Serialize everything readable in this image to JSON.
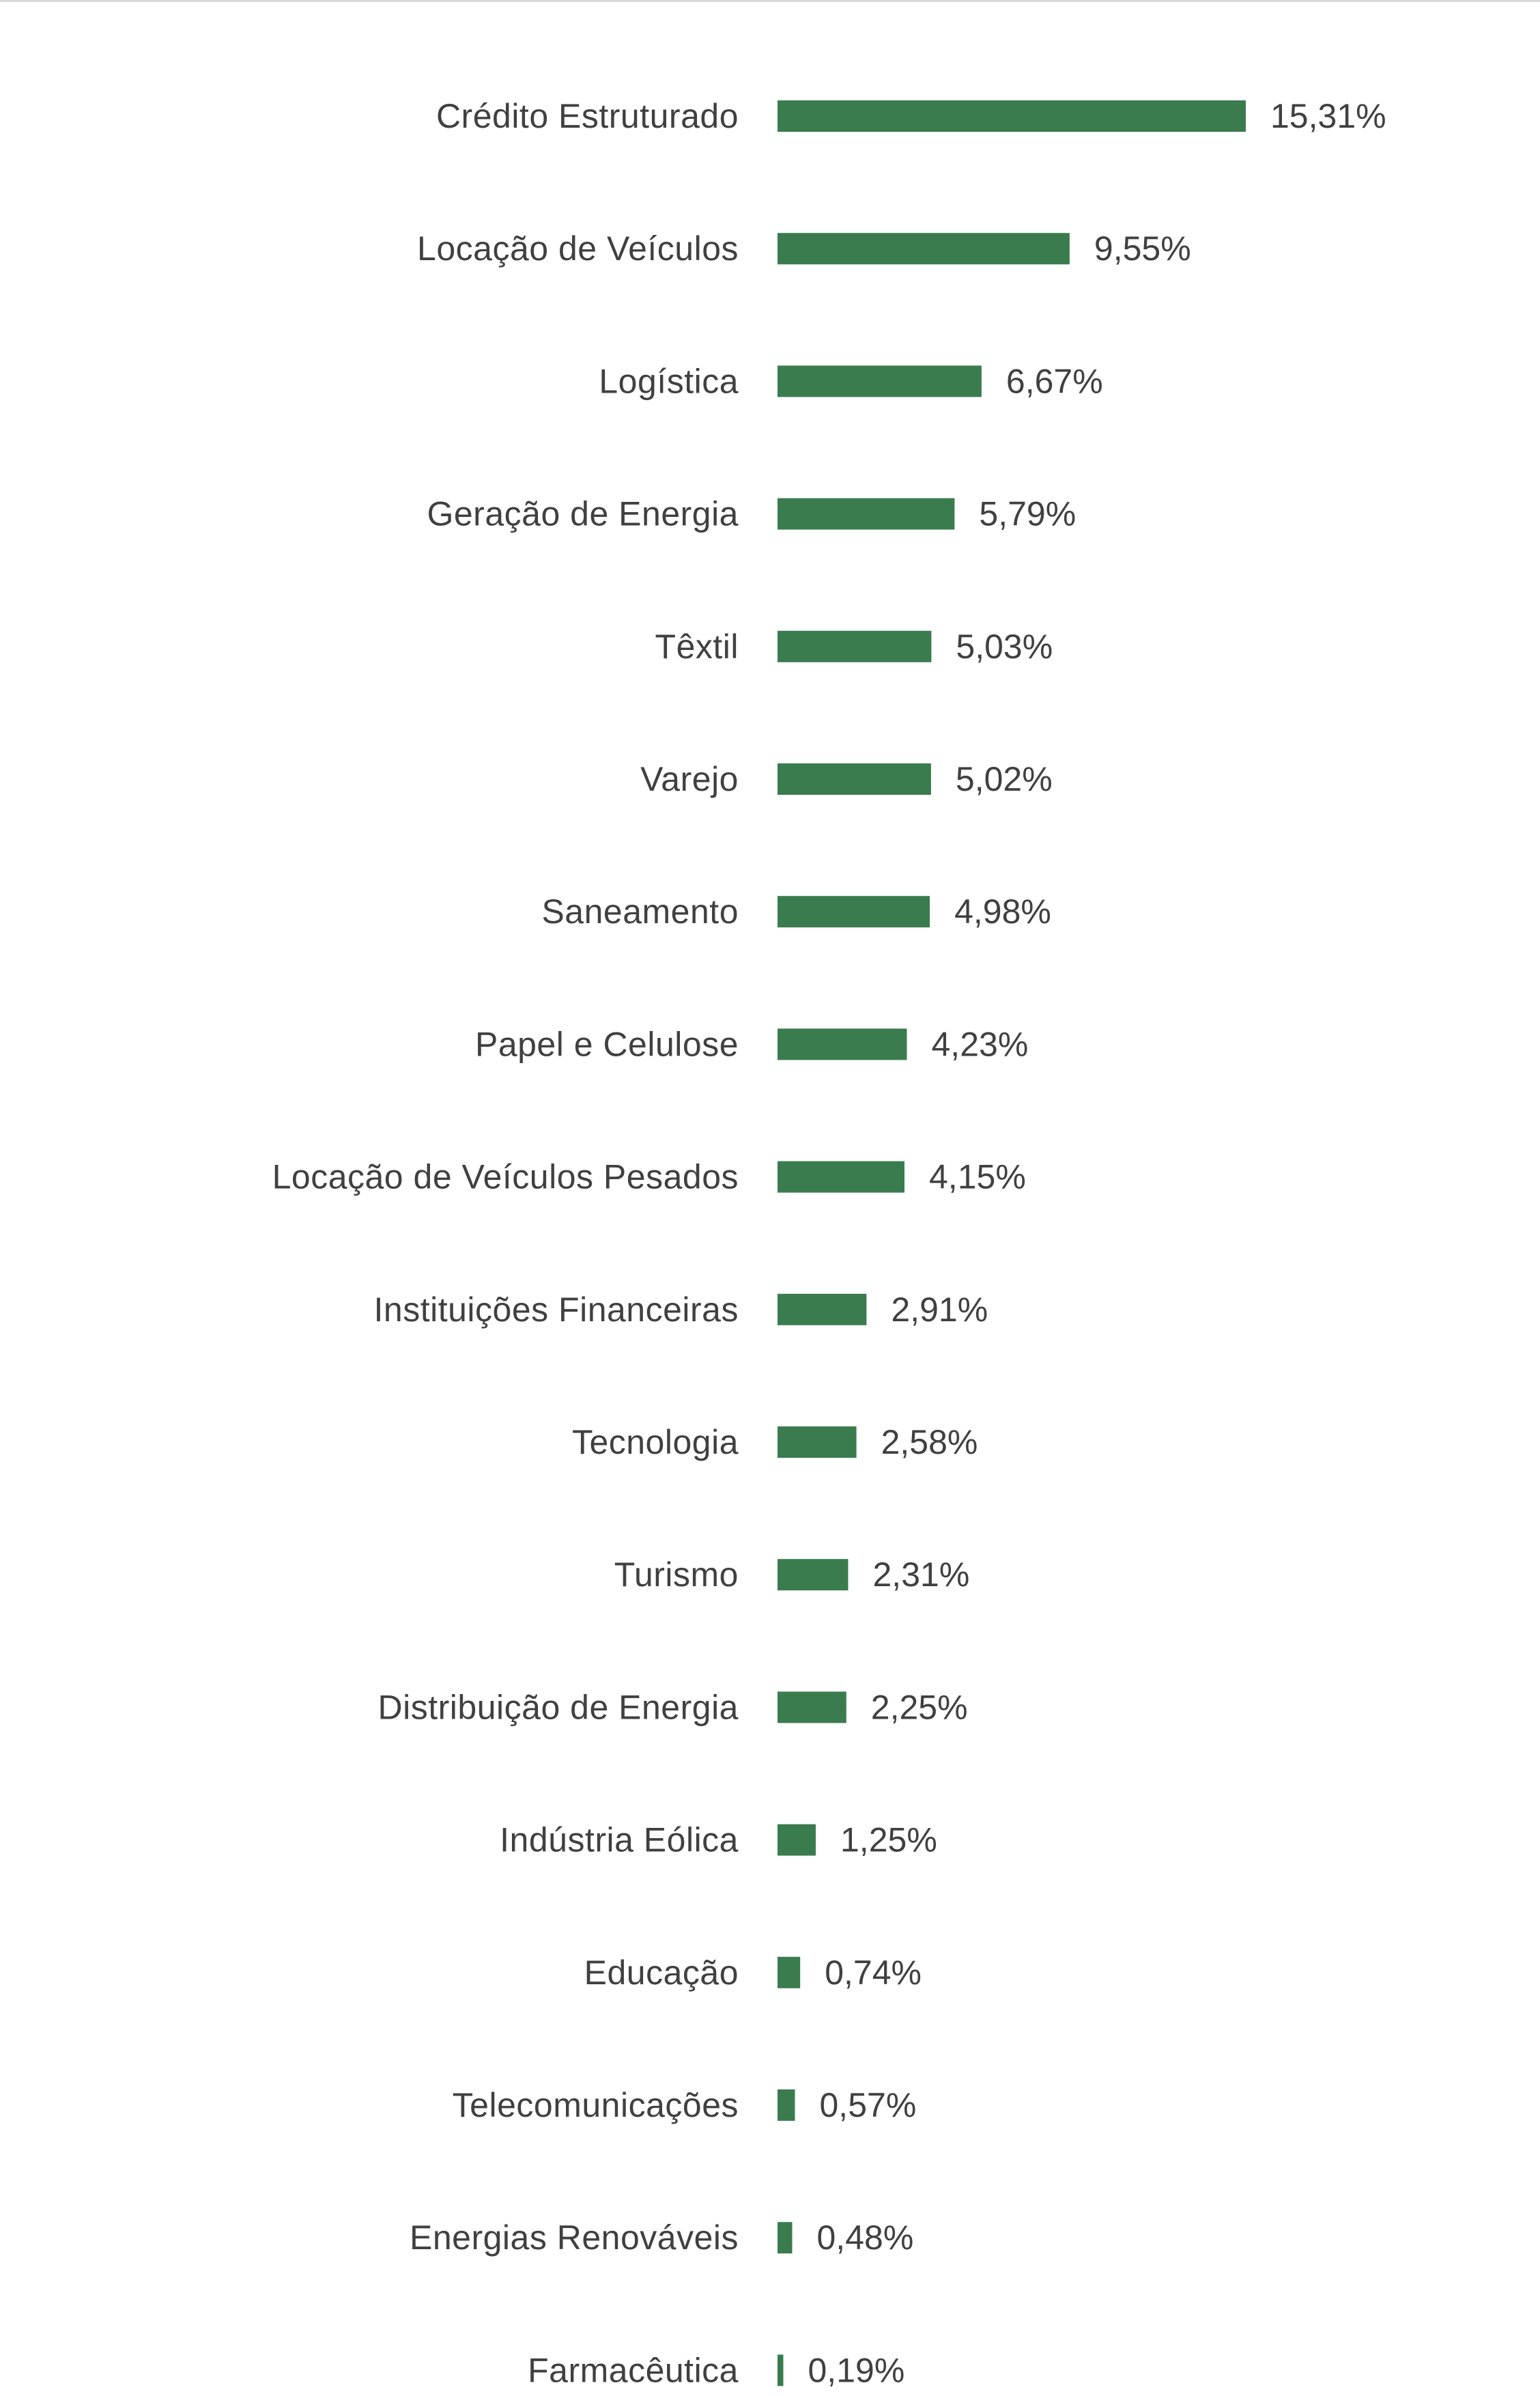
{
  "chart_data": {
    "type": "bar",
    "orientation": "horizontal",
    "categories": [
      "Crédito Estruturado",
      "Locação de Veículos",
      "Logística",
      "Geração de Energia",
      "Têxtil",
      "Varejo",
      "Saneamento",
      "Papel e Celulose",
      "Locação de Veículos Pesados",
      "Instituições Financeiras",
      "Tecnologia",
      "Turismo",
      "Distribuição de Energia",
      "Indústria Eólica",
      "Educação",
      "Telecomunicações",
      "Energias Renováveis",
      "Farmacêutica"
    ],
    "values": [
      15.31,
      9.55,
      6.67,
      5.79,
      5.03,
      5.02,
      4.98,
      4.23,
      4.15,
      2.91,
      2.58,
      2.31,
      2.25,
      1.25,
      0.74,
      0.57,
      0.48,
      0.19
    ],
    "value_labels": [
      "15,31%",
      "9,55%",
      "6,67%",
      "5,79%",
      "5,03%",
      "5,02%",
      "4,98%",
      "4,23%",
      "4,15%",
      "2,91%",
      "2,58%",
      "2,31%",
      "2,25%",
      "1,25%",
      "0,74%",
      "0,57%",
      "0,48%",
      "0,19%"
    ],
    "title": "",
    "xlabel": "",
    "ylabel": "",
    "bar_color": "#3a7c4e",
    "text_color": "#404040",
    "grid": false,
    "legend": "none",
    "axis_visible": false
  }
}
